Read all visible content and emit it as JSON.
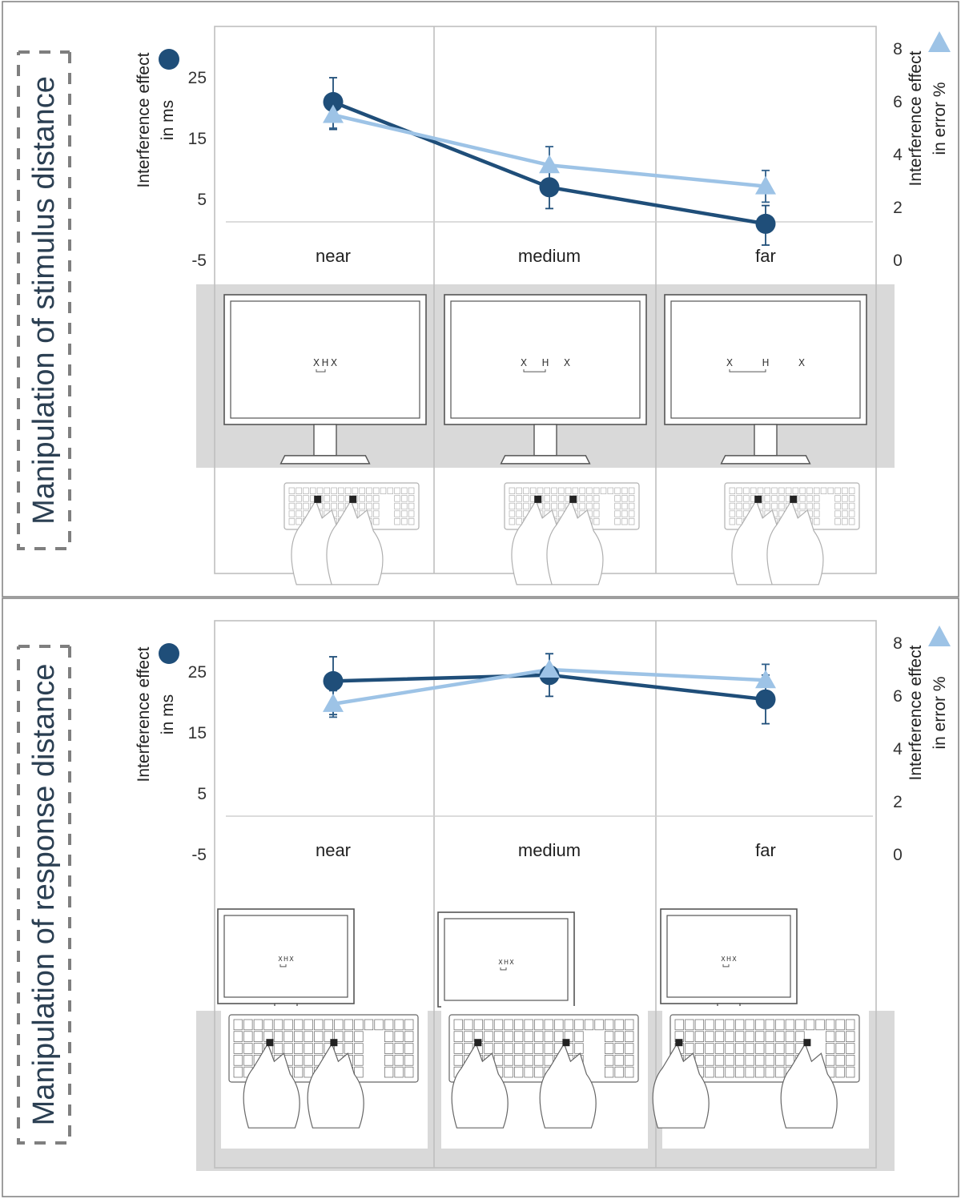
{
  "panels": [
    {
      "side_title": "Manipulation of stimulus distance",
      "manipulation": "stimulus",
      "display_left": "X",
      "display_center": "H",
      "display_right": "X"
    },
    {
      "side_title": "Manipulation of response distance",
      "manipulation": "response",
      "display_left": "X",
      "display_center": "H",
      "display_right": "X"
    }
  ],
  "icons": {
    "ms_marker": "filled-circle-icon",
    "error_marker": "filled-triangle-icon",
    "monitor": "monitor-icon",
    "keyboard": "keyboard-with-hands-icon"
  },
  "colors": {
    "ms_series": "#1f4e79",
    "error_series": "#9dc3e6",
    "grey_band": "#d9d9d9",
    "frame": "#bfbfbf"
  },
  "chart_data": [
    {
      "type": "line",
      "categories": [
        "near",
        "medium",
        "far"
      ],
      "y_left_label_line1": "Interference effect",
      "y_left_label_line2": "in ms",
      "y_right_label_line1": "Interference effect",
      "y_right_label_line2": "in error %",
      "y_left_ticks": [
        "25",
        "15",
        "5",
        "-5"
      ],
      "y_right_ticks": [
        "8",
        "6",
        "4",
        "2",
        "0"
      ],
      "y_left_range": [
        -5,
        30
      ],
      "y_right_range": [
        0,
        8
      ],
      "series": [
        {
          "axis": "left",
          "marker": "circle",
          "values": [
            21,
            7,
            1
          ],
          "err_low": [
            16.5,
            3.5,
            -2.5
          ],
          "err_high": [
            25,
            10.5,
            4
          ]
        },
        {
          "axis": "right",
          "marker": "triangle",
          "values": [
            5.5,
            3.6,
            2.8
          ],
          "err_low": [
            5.0,
            3.0,
            2.2
          ],
          "err_high": [
            5.8,
            4.3,
            3.4
          ]
        }
      ]
    },
    {
      "type": "line",
      "categories": [
        "near",
        "medium",
        "far"
      ],
      "y_left_label_line1": "Interference effect",
      "y_left_label_line2": "in ms",
      "y_right_label_line1": "Interference effect",
      "y_right_label_line2": "in error %",
      "y_left_ticks": [
        "25",
        "15",
        "5",
        "-5"
      ],
      "y_right_ticks": [
        "8",
        "6",
        "4",
        "2",
        "0"
      ],
      "y_left_range": [
        -5,
        30
      ],
      "y_right_range": [
        0,
        8
      ],
      "series": [
        {
          "axis": "left",
          "marker": "circle",
          "values": [
            23.5,
            24.5,
            20.5
          ],
          "err_low": [
            18,
            21,
            16.5
          ],
          "err_high": [
            27.5,
            28,
            24.5
          ]
        },
        {
          "axis": "right",
          "marker": "triangle",
          "values": [
            5.7,
            7.0,
            6.6
          ],
          "err_low": [
            5.2,
            6.5,
            6.0
          ],
          "err_high": [
            6.2,
            7.6,
            7.2
          ]
        }
      ]
    }
  ]
}
